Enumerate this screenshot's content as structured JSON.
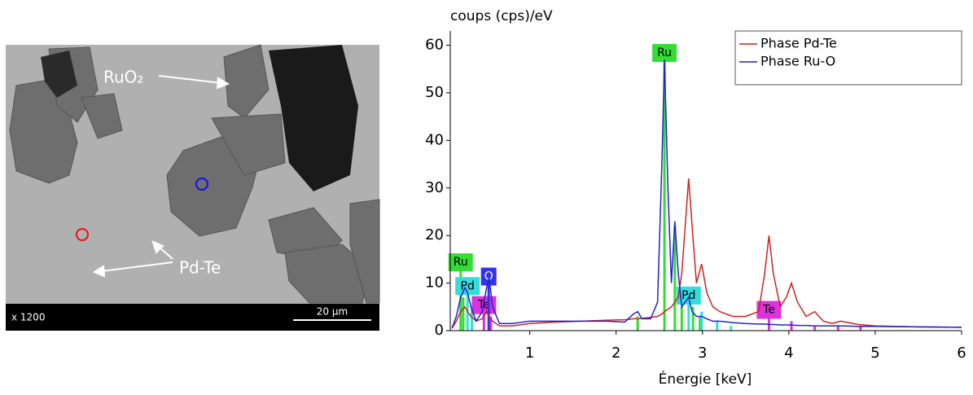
{
  "image": {
    "labels": {
      "oxide": "RuO₂",
      "alloy": "Pd-Te"
    },
    "magnification": "x 1200",
    "scale_bar": "20 µm"
  },
  "chart_data": {
    "type": "line",
    "y_label": "coups (cps)/eV",
    "x_label": "Énergie [keV]",
    "xlim": [
      0.08,
      6
    ],
    "ylim": [
      0,
      63
    ],
    "xticks": [
      1,
      2,
      3,
      4,
      5,
      6
    ],
    "yticks": [
      0,
      10,
      20,
      30,
      40,
      50,
      60
    ],
    "x": [
      0.1,
      0.15,
      0.2,
      0.25,
      0.28,
      0.32,
      0.38,
      0.45,
      0.5,
      0.53,
      0.57,
      0.65,
      0.8,
      1.0,
      1.3,
      1.6,
      1.9,
      2.1,
      2.2,
      2.25,
      2.3,
      2.4,
      2.48,
      2.53,
      2.56,
      2.6,
      2.64,
      2.68,
      2.72,
      2.76,
      2.8,
      2.84,
      2.88,
      2.93,
      2.99,
      3.05,
      3.12,
      3.2,
      3.35,
      3.5,
      3.65,
      3.72,
      3.77,
      3.82,
      3.9,
      3.97,
      4.03,
      4.1,
      4.2,
      4.3,
      4.4,
      4.5,
      4.6,
      4.8,
      5.0,
      5.5,
      6.0
    ],
    "series": [
      {
        "name": "Phase Pd-Te",
        "color": "#cc2222",
        "values": [
          0.5,
          2,
          4,
          5,
          4,
          3,
          2,
          2.5,
          4,
          3,
          2,
          1,
          1,
          1.5,
          1.8,
          2,
          2.2,
          2.3,
          2.5,
          2.5,
          2.6,
          2.8,
          3,
          3.5,
          4,
          4.5,
          5,
          6,
          7,
          12,
          22,
          32,
          22,
          10,
          14,
          8,
          5,
          4,
          3,
          3,
          4,
          12,
          20,
          12,
          5,
          7,
          10,
          6,
          3,
          4,
          2,
          1.5,
          2,
          1.3,
          1,
          0.8,
          0.7
        ]
      },
      {
        "name": "Phase Ru-O",
        "color": "#2222cc",
        "values": [
          0.5,
          3,
          7,
          9,
          8,
          5,
          2,
          4,
          9,
          11,
          5,
          1.5,
          1.5,
          2,
          2,
          2,
          2,
          1.8,
          3.5,
          4,
          2.5,
          2.5,
          6,
          35,
          57,
          30,
          10,
          23,
          12,
          5,
          6,
          7,
          4,
          3,
          3,
          2.5,
          2,
          2,
          1.7,
          1.5,
          1.4,
          1.4,
          1.3,
          1.3,
          1.2,
          1.2,
          1.2,
          1.1,
          1.1,
          1,
          1,
          1,
          1,
          0.9,
          0.9,
          0.8,
          0.7
        ]
      }
    ],
    "element_lines": [
      {
        "label": "Ru",
        "color": "#33dd33",
        "energies": [
          0.2,
          0.23
        ],
        "heights": [
          13,
          7
        ]
      },
      {
        "label": "Pd",
        "color": "#33dddd",
        "energies": [
          0.28,
          0.33
        ],
        "heights": [
          8,
          5
        ]
      },
      {
        "label": "Te",
        "color": "#dd33dd",
        "energies": [
          0.47,
          0.55
        ],
        "heights": [
          4,
          3
        ]
      },
      {
        "label": "O",
        "color": "#3333ee",
        "energies": [
          0.525
        ],
        "heights": [
          10
        ]
      },
      {
        "label": "Ru",
        "color": "#33dd33",
        "energies": [
          2.25,
          2.56,
          2.68,
          2.76,
          2.89,
          2.97
        ],
        "heights": [
          3,
          57,
          22,
          5,
          5,
          3
        ]
      },
      {
        "label": "Pd",
        "color": "#33dddd",
        "energies": [
          2.84,
          2.99,
          3.17,
          3.33
        ],
        "heights": [
          6,
          4,
          2,
          1
        ]
      },
      {
        "label": "Te",
        "color": "#dd33dd",
        "energies": [
          3.77,
          4.03,
          4.3,
          4.57,
          4.83
        ],
        "heights": [
          3,
          2,
          1,
          1,
          1
        ]
      }
    ]
  }
}
